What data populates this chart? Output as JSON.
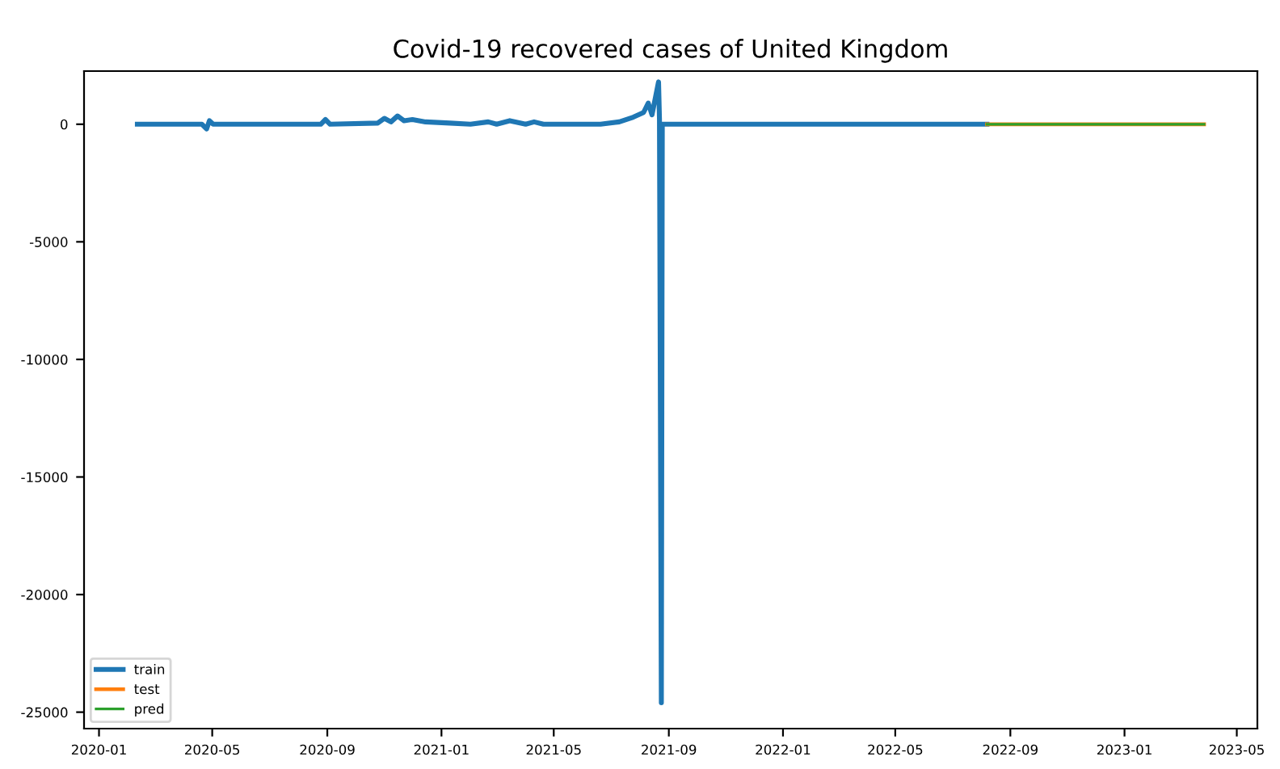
{
  "chart_data": {
    "type": "line",
    "title": "Covid-19 recovered cases of United Kingdom",
    "series": [
      {
        "name": "train",
        "color": "#1f77b4",
        "x": [
          "2020-02-11",
          "2020-04-20",
          "2020-04-25",
          "2020-04-28",
          "2020-05-02",
          "2020-08-25",
          "2020-08-30",
          "2020-09-04",
          "2020-10-25",
          "2020-11-01",
          "2020-11-08",
          "2020-11-15",
          "2020-11-22",
          "2020-12-01",
          "2020-12-15",
          "2021-01-10",
          "2021-02-01",
          "2021-02-20",
          "2021-03-01",
          "2021-03-15",
          "2021-04-01",
          "2021-04-10",
          "2021-04-20",
          "2021-06-20",
          "2021-07-10",
          "2021-07-25",
          "2021-08-05",
          "2021-08-10",
          "2021-08-14",
          "2021-08-18",
          "2021-08-21",
          "2021-08-22",
          "2021-08-24",
          "2021-08-25",
          "2022-08-07"
        ],
        "values": [
          0,
          0,
          -200,
          150,
          0,
          0,
          200,
          0,
          50,
          250,
          100,
          350,
          150,
          200,
          100,
          50,
          0,
          100,
          0,
          150,
          0,
          100,
          0,
          0,
          100,
          300,
          500,
          900,
          400,
          1200,
          1800,
          200,
          -24600,
          0,
          0
        ]
      },
      {
        "name": "test",
        "color": "#ff7f0e",
        "x": [
          "2022-08-07",
          "2023-03-27"
        ],
        "values": [
          0,
          0
        ]
      },
      {
        "name": "pred",
        "color": "#2ca02c",
        "x": [
          "2022-08-07",
          "2023-03-27"
        ],
        "values": [
          0,
          0
        ]
      }
    ],
    "xlim": [
      "2019-12-16",
      "2023-05-23"
    ],
    "xticks": [
      "2020-01",
      "2020-05",
      "2020-09",
      "2021-01",
      "2021-05",
      "2021-09",
      "2022-01",
      "2022-05",
      "2022-09",
      "2023-01",
      "2023-05"
    ],
    "ylim": [
      -25700,
      2260
    ],
    "yticks": [
      0,
      -5000,
      -10000,
      -15000,
      -20000,
      -25000
    ],
    "legend": "bottom left",
    "grid": false
  }
}
